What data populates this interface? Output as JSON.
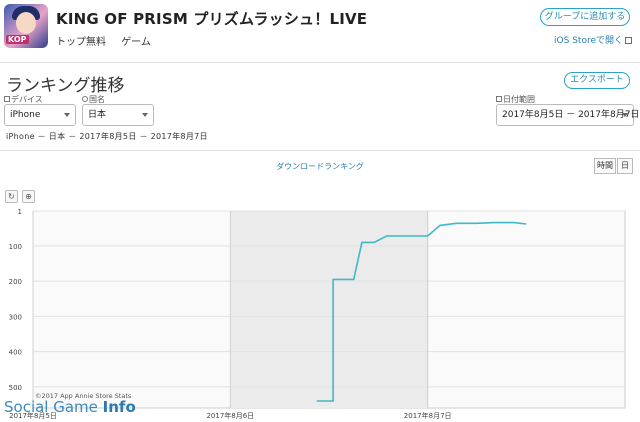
{
  "app": {
    "title": "KING OF PRISM プリズムラッシュ！LIVE",
    "price": "トップ無料",
    "category": "ゲーム",
    "icon": "app-icon-character"
  },
  "header": {
    "group_button": "グループに追加する",
    "store_link": "iOS Storeで開く"
  },
  "section": {
    "title": "ランキング推移",
    "export_button": "エクスポート"
  },
  "filters": {
    "device_label": "デバイス",
    "device_value": "iPhone",
    "country_label": "国名",
    "country_value": "日本",
    "date_label": "日付範囲",
    "date_value": "2017年8月5日 － 2017年8月7日"
  },
  "subtitle": "iPhone － 日本 － 2017年8月5日 － 2017年8月7日",
  "chart_header": {
    "title": "ダウンロードランキング",
    "toggle_hour": "時間",
    "toggle_day": "日"
  },
  "tools": {
    "reset": "↻",
    "zoom": "⊕"
  },
  "credit": "©2017 App Annie Store Stats",
  "watermark": {
    "prefix": "Social Game ",
    "bold": "Info"
  },
  "chart_data": {
    "type": "line",
    "title": "ダウンロードランキング",
    "x_range": [
      0,
      72
    ],
    "x_unit": "hours since 2017年8月5日 00:00",
    "x_tick_labels": [
      {
        "x": 0,
        "label": "2017年8月5日"
      },
      {
        "x": 24,
        "label": "2017年8月6日"
      },
      {
        "x": 48,
        "label": "2017年8月7日"
      }
    ],
    "y_axis": {
      "inverted": true,
      "range": [
        1,
        560
      ],
      "ticks": [
        1,
        100,
        200,
        300,
        400,
        500
      ]
    },
    "shaded_band": [
      24,
      48
    ],
    "series": [
      {
        "name": "",
        "color": "#3fb8c8",
        "x": [
          34.5,
          36.5,
          36.5,
          37.0,
          39.0,
          40.0,
          41.5,
          43.0,
          45.0,
          47.0,
          48.0,
          49.5,
          51.5,
          54.0,
          56.0,
          58.5,
          60.0
        ],
        "y": [
          540,
          540,
          195,
          195,
          195,
          90,
          90,
          72,
          72,
          72,
          72,
          42,
          36,
          36,
          34,
          34,
          38
        ]
      }
    ],
    "grid": true
  }
}
